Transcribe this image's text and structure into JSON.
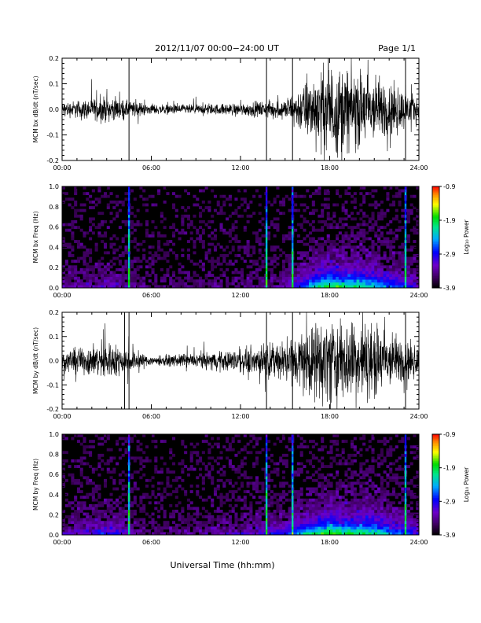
{
  "header": {
    "title": "2012/11/07   00:00−24:00  UT",
    "page": "Page 1/1"
  },
  "footer": {
    "xlabel": "Universal Time (hh:mm)"
  },
  "colorbar": {
    "label": "Log₁₀ Power",
    "ticks": [
      "-0.9",
      "-1.9",
      "-2.9",
      "-3.9"
    ],
    "range": [
      -3.9,
      -0.9
    ]
  },
  "chart_data": [
    {
      "type": "line",
      "ylabel": "MCM bx dB/dt (nT/sec)",
      "x_ticks": [
        "00:00",
        "06:00",
        "12:00",
        "18:00",
        "24:00"
      ],
      "y_ticks": [
        "0.2",
        "0.1",
        "0.0",
        "-0.1",
        "-0.2"
      ],
      "xlim": [
        0,
        24
      ],
      "ylim": [
        -0.2,
        0.2
      ],
      "activity": [
        {
          "hour": 0,
          "amp": 0.03
        },
        {
          "hour": 3,
          "amp": 0.05
        },
        {
          "hour": 6,
          "amp": 0.02
        },
        {
          "hour": 9,
          "amp": 0.02
        },
        {
          "hour": 12,
          "amp": 0.025
        },
        {
          "hour": 15,
          "amp": 0.04
        },
        {
          "hour": 16.5,
          "amp": 0.12
        },
        {
          "hour": 18,
          "amp": 0.19
        },
        {
          "hour": 21,
          "amp": 0.14
        },
        {
          "hour": 24,
          "amp": 0.05
        }
      ],
      "spikes": [
        4.5,
        13.75,
        15.5,
        23.1
      ]
    },
    {
      "type": "heatmap",
      "ylabel": "MCM bx Freq (Hz)",
      "x_ticks": [
        "00:00",
        "06:00",
        "12:00",
        "18:00",
        "24:00"
      ],
      "y_ticks": [
        "1.0",
        "0.8",
        "0.6",
        "0.4",
        "0.2",
        "0.0"
      ],
      "xlim": [
        0,
        24
      ],
      "ylim": [
        0.0,
        1.0
      ],
      "strong_lines": [
        4.5,
        13.75,
        15.5,
        23.1
      ]
    },
    {
      "type": "line",
      "ylabel": "MCM by dB/dt (nT/sec)",
      "x_ticks": [
        "00:00",
        "06:00",
        "12:00",
        "18:00",
        "24:00"
      ],
      "y_ticks": [
        "0.2",
        "0.1",
        "0.0",
        "-0.1",
        "-0.2"
      ],
      "xlim": [
        0,
        24
      ],
      "ylim": [
        -0.2,
        0.2
      ],
      "activity": [
        {
          "hour": 0,
          "amp": 0.04
        },
        {
          "hour": 3,
          "amp": 0.08
        },
        {
          "hour": 6,
          "amp": 0.02
        },
        {
          "hour": 9,
          "amp": 0.03
        },
        {
          "hour": 12,
          "amp": 0.05
        },
        {
          "hour": 15,
          "amp": 0.08
        },
        {
          "hour": 16.5,
          "amp": 0.14
        },
        {
          "hour": 18,
          "amp": 0.19
        },
        {
          "hour": 21,
          "amp": 0.16
        },
        {
          "hour": 24,
          "amp": 0.06
        }
      ],
      "spikes": [
        4.2,
        4.5,
        13.75,
        15.5,
        23.1
      ]
    },
    {
      "type": "heatmap",
      "ylabel": "MCM by Freq (Hz)",
      "x_ticks": [
        "00:00",
        "06:00",
        "12:00",
        "18:00",
        "24:00"
      ],
      "y_ticks": [
        "1.0",
        "0.8",
        "0.6",
        "0.4",
        "0.2",
        "0.0"
      ],
      "xlim": [
        0,
        24
      ],
      "ylim": [
        0.0,
        1.0
      ],
      "strong_lines": [
        4.5,
        13.75,
        15.5,
        23.1
      ]
    }
  ]
}
